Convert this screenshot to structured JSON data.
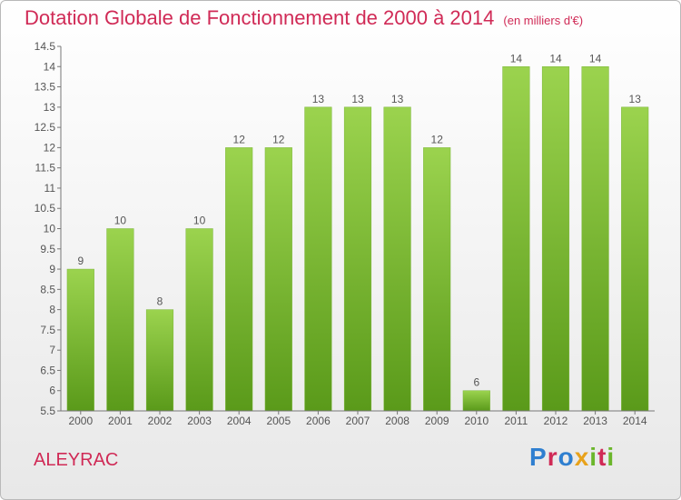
{
  "title": "Dotation Globale de Fonctionnement de 2000 à 2014",
  "subtitle": "(en milliers d'€)",
  "commune": "ALEYRAC",
  "logo": {
    "text": "Proxiti",
    "colors": [
      "#2f7fd0",
      "#e8a21b",
      "#d02a56",
      "#6bb62b"
    ]
  },
  "colors": {
    "title": "#d02a56",
    "bar_top": "#9bd34e",
    "bar_bottom": "#5a9a1a",
    "axis_text": "#555555"
  },
  "chart_data": {
    "type": "bar",
    "title": "Dotation Globale de Fonctionnement de 2000 à 2014",
    "subtitle": "(en milliers d'€)",
    "xlabel": "",
    "ylabel": "",
    "categories": [
      "2000",
      "2001",
      "2002",
      "2003",
      "2004",
      "2005",
      "2006",
      "2007",
      "2008",
      "2009",
      "2010",
      "2011",
      "2012",
      "2013",
      "2014"
    ],
    "values": [
      9,
      10,
      8,
      10,
      12,
      12,
      13,
      13,
      13,
      12,
      6,
      14,
      14,
      14,
      13
    ],
    "data_labels": [
      "9",
      "10",
      "8",
      "10",
      "12",
      "12",
      "13",
      "13",
      "13",
      "12",
      "6",
      "14",
      "14",
      "14",
      "13"
    ],
    "ylim": [
      5.5,
      14.5
    ],
    "yticks": [
      "5.5",
      "6",
      "6.5",
      "7",
      "7.5",
      "8",
      "8.5",
      "9",
      "9.5",
      "10",
      "10.5",
      "11",
      "11.5",
      "12",
      "12.5",
      "13",
      "13.5",
      "14",
      "14.5"
    ],
    "grid": false,
    "legend": "none"
  }
}
